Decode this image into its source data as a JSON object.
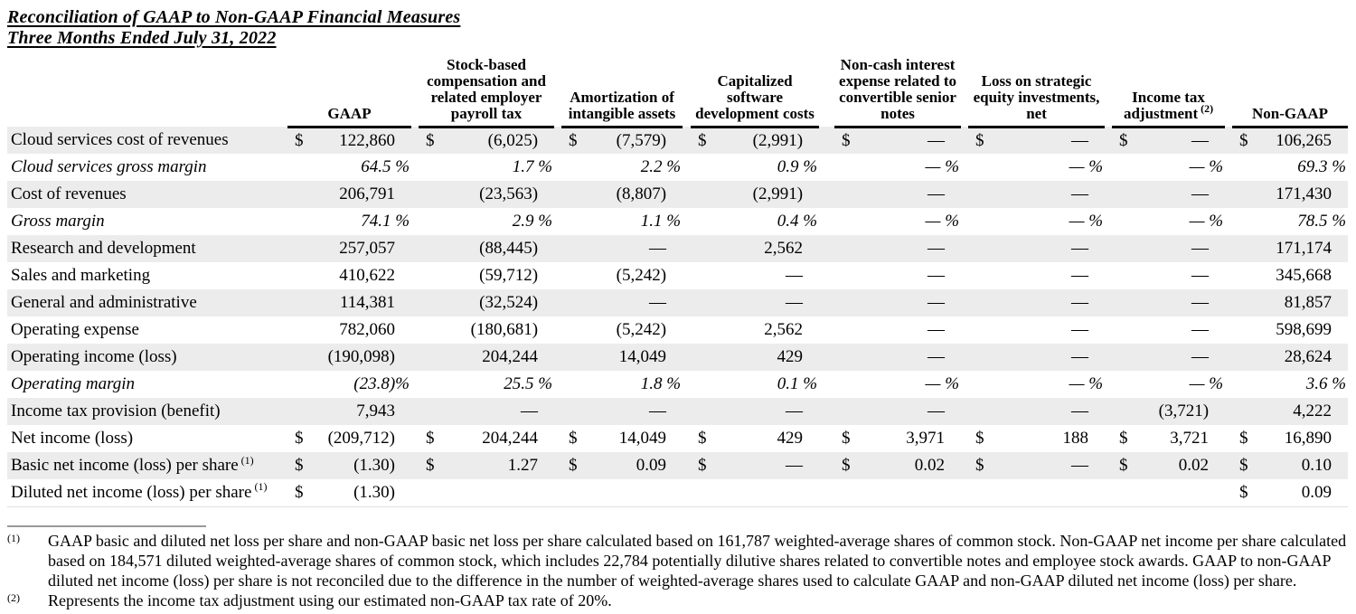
{
  "title": {
    "line1": "Reconciliation of GAAP to Non-GAAP Financial Measures",
    "line2": "Three Months Ended July 31, 2022"
  },
  "table": {
    "columns": [
      {
        "label": "GAAP"
      },
      {
        "label": "Stock-based compensation and related employer payroll tax"
      },
      {
        "label": "Amortization of intangible assets"
      },
      {
        "label": "Capitalized software development costs"
      },
      {
        "label": "Non-cash interest expense related to convertible senior notes"
      },
      {
        "label": "Loss on strategic equity investments, net"
      },
      {
        "label": "Income tax adjustment",
        "sup": "(2)"
      },
      {
        "label": "Non-GAAP"
      }
    ],
    "rows": [
      {
        "label": "Cloud services cost of revenues",
        "italic": false,
        "cells": [
          [
            "$",
            "122,860"
          ],
          [
            "$",
            "(6,025)"
          ],
          [
            "$",
            "(7,579)"
          ],
          [
            "$",
            "(2,991)"
          ],
          [
            "$",
            "—"
          ],
          [
            "$",
            "—"
          ],
          [
            "$",
            "—"
          ],
          [
            "$",
            "106,265"
          ]
        ]
      },
      {
        "label": "Cloud services gross margin",
        "italic": true,
        "cells": [
          [
            "",
            "64.5 %"
          ],
          [
            "",
            "1.7 %"
          ],
          [
            "",
            "2.2 %"
          ],
          [
            "",
            "0.9 %"
          ],
          [
            "",
            "— %"
          ],
          [
            "",
            "— %"
          ],
          [
            "",
            "— %"
          ],
          [
            "",
            "69.3 %"
          ]
        ]
      },
      {
        "label": "Cost of revenues",
        "italic": false,
        "cells": [
          [
            "",
            "206,791"
          ],
          [
            "",
            "(23,563)"
          ],
          [
            "",
            "(8,807)"
          ],
          [
            "",
            "(2,991)"
          ],
          [
            "",
            "—"
          ],
          [
            "",
            "—"
          ],
          [
            "",
            "—"
          ],
          [
            "",
            "171,430"
          ]
        ]
      },
      {
        "label": "Gross margin",
        "italic": true,
        "cells": [
          [
            "",
            "74.1 %"
          ],
          [
            "",
            "2.9 %"
          ],
          [
            "",
            "1.1 %"
          ],
          [
            "",
            "0.4 %"
          ],
          [
            "",
            "— %"
          ],
          [
            "",
            "— %"
          ],
          [
            "",
            "— %"
          ],
          [
            "",
            "78.5 %"
          ]
        ]
      },
      {
        "label": "Research and development",
        "italic": false,
        "cells": [
          [
            "",
            "257,057"
          ],
          [
            "",
            "(88,445)"
          ],
          [
            "",
            "—"
          ],
          [
            "",
            "2,562"
          ],
          [
            "",
            "—"
          ],
          [
            "",
            "—"
          ],
          [
            "",
            "—"
          ],
          [
            "",
            "171,174"
          ]
        ]
      },
      {
        "label": "Sales and marketing",
        "italic": false,
        "cells": [
          [
            "",
            "410,622"
          ],
          [
            "",
            "(59,712)"
          ],
          [
            "",
            "(5,242)"
          ],
          [
            "",
            "—"
          ],
          [
            "",
            "—"
          ],
          [
            "",
            "—"
          ],
          [
            "",
            "—"
          ],
          [
            "",
            "345,668"
          ]
        ]
      },
      {
        "label": "General and administrative",
        "italic": false,
        "cells": [
          [
            "",
            "114,381"
          ],
          [
            "",
            "(32,524)"
          ],
          [
            "",
            "—"
          ],
          [
            "",
            "—"
          ],
          [
            "",
            "—"
          ],
          [
            "",
            "—"
          ],
          [
            "",
            "—"
          ],
          [
            "",
            "81,857"
          ]
        ]
      },
      {
        "label": "Operating expense",
        "italic": false,
        "cells": [
          [
            "",
            "782,060"
          ],
          [
            "",
            "(180,681)"
          ],
          [
            "",
            "(5,242)"
          ],
          [
            "",
            "2,562"
          ],
          [
            "",
            "—"
          ],
          [
            "",
            "—"
          ],
          [
            "",
            "—"
          ],
          [
            "",
            "598,699"
          ]
        ]
      },
      {
        "label": "Operating income (loss)",
        "italic": false,
        "cells": [
          [
            "",
            "(190,098)"
          ],
          [
            "",
            "204,244"
          ],
          [
            "",
            "14,049"
          ],
          [
            "",
            "429"
          ],
          [
            "",
            "—"
          ],
          [
            "",
            "—"
          ],
          [
            "",
            "—"
          ],
          [
            "",
            "28,624"
          ]
        ]
      },
      {
        "label": "Operating margin",
        "italic": true,
        "cells": [
          [
            "",
            "(23.8)%"
          ],
          [
            "",
            "25.5 %"
          ],
          [
            "",
            "1.8 %"
          ],
          [
            "",
            "0.1 %"
          ],
          [
            "",
            "— %"
          ],
          [
            "",
            "— %"
          ],
          [
            "",
            "— %"
          ],
          [
            "",
            "3.6 %"
          ]
        ]
      },
      {
        "label": "Income tax provision (benefit)",
        "italic": false,
        "cells": [
          [
            "",
            "7,943"
          ],
          [
            "",
            "—"
          ],
          [
            "",
            "—"
          ],
          [
            "",
            "—"
          ],
          [
            "",
            "—"
          ],
          [
            "",
            "—"
          ],
          [
            "",
            "(3,721)"
          ],
          [
            "",
            "4,222"
          ]
        ]
      },
      {
        "label": "Net income (loss)",
        "italic": false,
        "cells": [
          [
            "$",
            "(209,712)"
          ],
          [
            "$",
            "204,244"
          ],
          [
            "$",
            "14,049"
          ],
          [
            "$",
            "429"
          ],
          [
            "$",
            "3,971"
          ],
          [
            "$",
            "188"
          ],
          [
            "$",
            "3,721"
          ],
          [
            "$",
            "16,890"
          ]
        ]
      },
      {
        "label": "Basic net income (loss) per share",
        "sup": "(1)",
        "italic": false,
        "cells": [
          [
            "$",
            "(1.30)"
          ],
          [
            "$",
            "1.27"
          ],
          [
            "$",
            "0.09"
          ],
          [
            "$",
            "—"
          ],
          [
            "$",
            "0.02"
          ],
          [
            "$",
            "—"
          ],
          [
            "$",
            "0.02"
          ],
          [
            "$",
            "0.10"
          ]
        ]
      },
      {
        "label": "Diluted net income (loss) per share",
        "sup": "(1)",
        "italic": false,
        "cells": [
          [
            "$",
            "(1.30)"
          ],
          [
            "",
            ""
          ],
          [
            "",
            ""
          ],
          [
            "",
            ""
          ],
          [
            "",
            ""
          ],
          [
            "",
            ""
          ],
          [
            "",
            ""
          ],
          [
            "$",
            "0.09"
          ]
        ]
      }
    ]
  },
  "footnotes": [
    {
      "marker": "(1)",
      "text": "GAAP basic and diluted net loss per share and non-GAAP basic net loss per share calculated based on 161,787 weighted-average shares of common stock. Non-GAAP net income per share calculated based on 184,571 diluted weighted-average shares of common stock, which includes 22,784 potentially dilutive shares related to convertible notes and employee stock awards. GAAP to non-GAAP diluted net income (loss) per share is not reconciled due to the difference in the number of weighted-average shares used to calculate GAAP and non-GAAP diluted net income (loss) per share."
    },
    {
      "marker": "(2)",
      "text": "Represents the income tax adjustment using our estimated non-GAAP tax rate of 20%."
    }
  ]
}
